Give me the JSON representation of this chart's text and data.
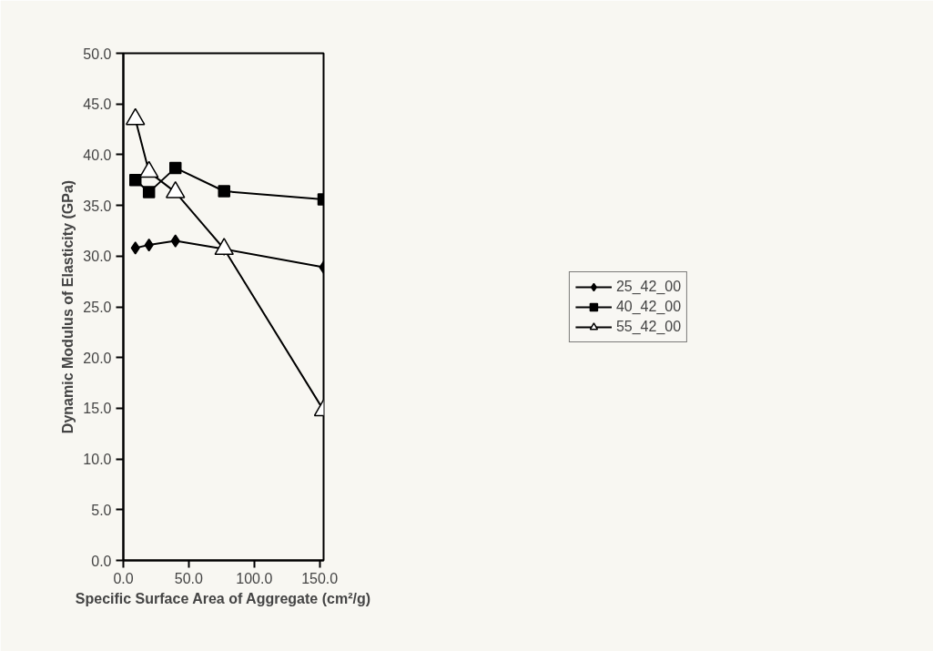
{
  "chart_data": {
    "type": "line",
    "xlabel": "Specific Surface Area of Aggregate (cm²/g)",
    "ylabel": "Dynamic Modulus of Elasticity (GPa)",
    "x": [
      9.2,
      19.6,
      39.8,
      77,
      153
    ],
    "xlim": [
      0,
      153
    ],
    "xticks": [
      {
        "value": 0,
        "label": "0.0"
      },
      {
        "value": 50,
        "label": "50.0"
      },
      {
        "value": 100,
        "label": "100.0"
      },
      {
        "value": 150,
        "label": "150.0"
      }
    ],
    "ylim": [
      0,
      50
    ],
    "yticks": [
      {
        "value": 0,
        "label": "0.0"
      },
      {
        "value": 5,
        "label": "5.0"
      },
      {
        "value": 10,
        "label": "10.0"
      },
      {
        "value": 15,
        "label": "15.0"
      },
      {
        "value": 20,
        "label": "20.0"
      },
      {
        "value": 25,
        "label": "25.0"
      },
      {
        "value": 30,
        "label": "30.0"
      },
      {
        "value": 35,
        "label": "35.0"
      },
      {
        "value": 40,
        "label": "40.0"
      },
      {
        "value": 45,
        "label": "45.0"
      },
      {
        "value": 50,
        "label": "50.0"
      }
    ],
    "series": [
      {
        "name": "25_42_00",
        "color": "#000000",
        "marker": "diamond",
        "values": [
          30.8,
          31.1,
          31.5,
          30.7,
          28.9
        ]
      },
      {
        "name": "40_42_00",
        "color": "#000000",
        "marker": "square",
        "values": [
          37.5,
          36.3,
          38.7,
          36.4,
          35.6
        ]
      },
      {
        "name": "55_42_00",
        "color": "#000000",
        "marker": "triangle",
        "values": [
          43.5,
          38.3,
          36.3,
          30.7,
          14.8
        ]
      }
    ],
    "grid": false,
    "legend": "right",
    "line_style": "solid"
  }
}
